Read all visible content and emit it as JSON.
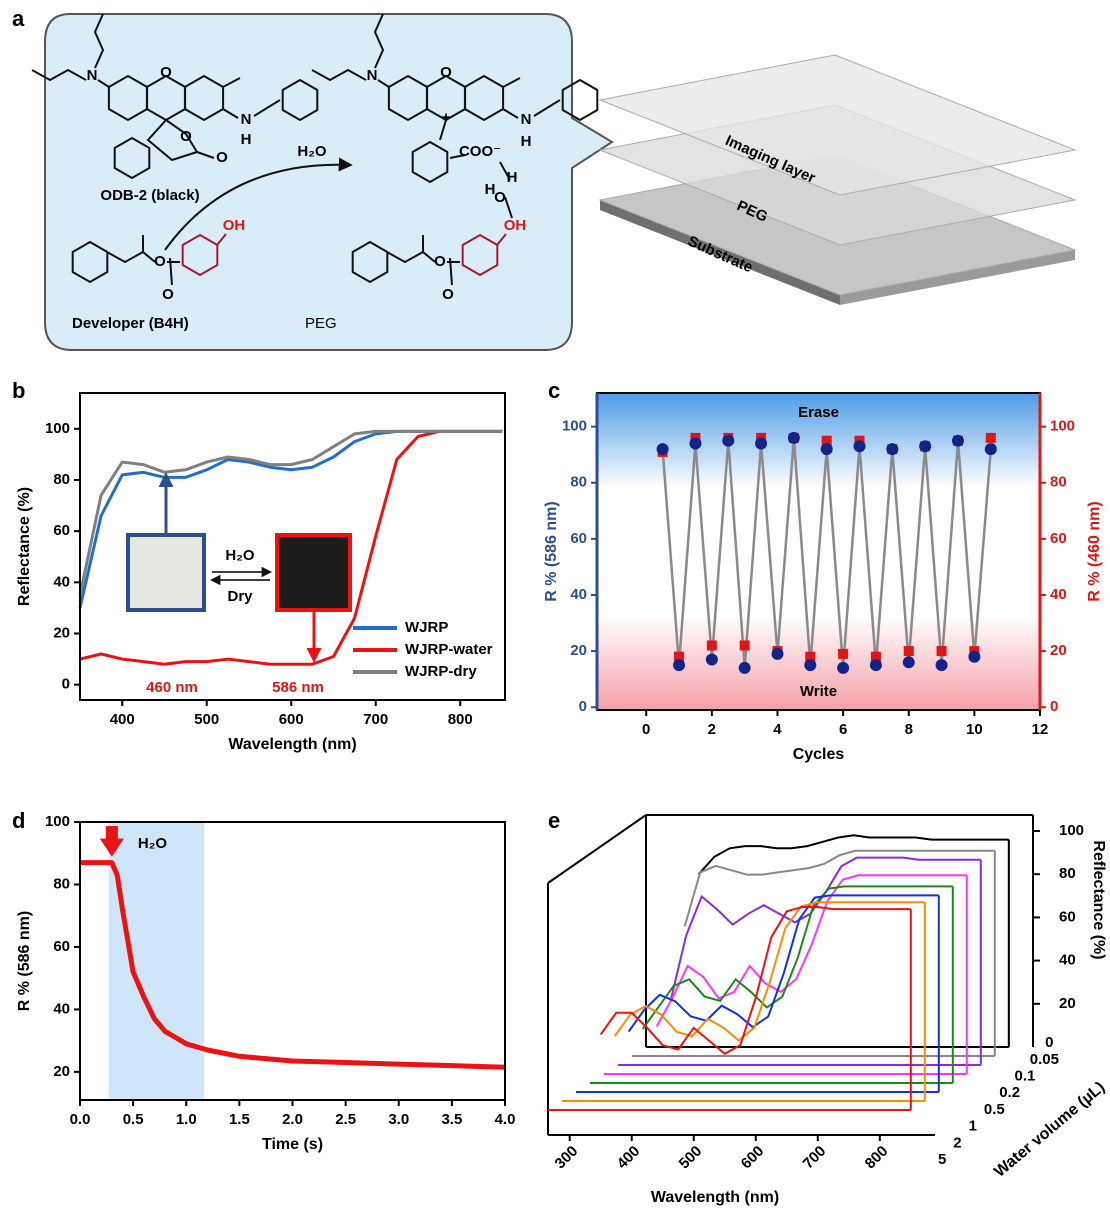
{
  "panel_labels": [
    "a",
    "b",
    "c",
    "d",
    "e"
  ],
  "scheme": {
    "dye": "ODB-2 (black)",
    "reagent": "H₂O",
    "developer": "Developer (B4H)",
    "matrix": "PEG",
    "dye_atoms": [
      "N",
      "O",
      "O",
      "O",
      "N",
      "H"
    ],
    "developer_atoms": [
      "OH",
      "O",
      "O"
    ],
    "complex_atoms": [
      "N",
      "O",
      "+",
      "COO⁻",
      "N",
      "H",
      "H",
      "O",
      "H",
      "OH",
      "O",
      "O"
    ],
    "layers": [
      "Imaging layer",
      "PEG",
      "Substrate"
    ]
  },
  "chart_data": [
    {
      "type": "line",
      "xlabel": "Wavelength (nm)",
      "ylabel": "Reflectance (%)",
      "x": [
        350,
        375,
        400,
        425,
        450,
        475,
        500,
        525,
        550,
        575,
        600,
        625,
        650,
        675,
        700,
        725,
        750,
        775,
        800,
        825,
        850
      ],
      "series": [
        {
          "name": "WJRP",
          "color": "#1f6fd1",
          "values": [
            30,
            66,
            82,
            83,
            81,
            81,
            84,
            88,
            87,
            85,
            84,
            85,
            89,
            95,
            98,
            99,
            99,
            99,
            99,
            99,
            99
          ]
        },
        {
          "name": "WJRP-water",
          "color": "#ee1111",
          "values": [
            10,
            12,
            10,
            9,
            8,
            9,
            9,
            10,
            9,
            8,
            8,
            8,
            11,
            26,
            58,
            88,
            97,
            99,
            99,
            99,
            99
          ]
        },
        {
          "name": "WJRP-dry",
          "color": "#808080",
          "values": [
            35,
            74,
            87,
            86,
            83,
            84,
            87,
            89,
            88,
            86,
            86,
            88,
            93,
            98,
            99,
            99,
            99,
            99,
            99,
            99,
            99
          ]
        }
      ],
      "xlim": [
        350,
        853
      ],
      "ylim": [
        -6,
        114
      ],
      "xticks": [
        400,
        500,
        600,
        700,
        800
      ],
      "yticks": [
        0,
        20,
        40,
        60,
        80,
        100
      ],
      "legend": "lower right",
      "annotations": [
        "460 nm",
        "586 nm",
        "H₂O",
        "Dry"
      ]
    },
    {
      "type": "scatter",
      "xlabel": "Cycles",
      "ylabel": "R % (586 nm)",
      "y2label": "R % (460 nm)",
      "x": [
        0.5,
        1,
        1.5,
        2,
        2.5,
        3,
        3.5,
        4,
        4.5,
        5,
        5.5,
        6,
        6.5,
        7,
        7.5,
        8,
        8.5,
        9,
        9.5,
        10,
        10.5
      ],
      "series": [
        {
          "color": "#13238a",
          "values": [
            92,
            15,
            94,
            17,
            95,
            14,
            94,
            19,
            96,
            15,
            92,
            14,
            93,
            15,
            92,
            16,
            93,
            15,
            95,
            18,
            92
          ]
        },
        {
          "color": "#e01515",
          "axis": "y2",
          "values": [
            91,
            18,
            96,
            22,
            96,
            22,
            96,
            20,
            96,
            18,
            95,
            19,
            95,
            18,
            92,
            20,
            93,
            20,
            95,
            20,
            96
          ]
        }
      ],
      "xlim": [
        -1.5,
        12
      ],
      "ylim": [
        -1,
        112
      ],
      "y2lim": [
        -1,
        112
      ],
      "xticks": [
        0,
        2,
        4,
        6,
        8,
        10,
        12
      ],
      "yticks": [
        0,
        20,
        40,
        60,
        80,
        100
      ],
      "y2ticks": [
        0,
        20,
        40,
        60,
        80,
        100
      ],
      "annotations": [
        "Erase",
        "Write"
      ]
    },
    {
      "type": "line",
      "xlabel": "Time (s)",
      "ylabel": "R % (586 nm)",
      "x": [
        0,
        0.3,
        0.35,
        0.4,
        0.5,
        0.6,
        0.7,
        0.8,
        0.9,
        1,
        1.2,
        1.5,
        2,
        2.5,
        3,
        3.5,
        4
      ],
      "series": [
        {
          "color": "#ee1111",
          "values": [
            87,
            87,
            83,
            72,
            52,
            44,
            37,
            33,
            31,
            29,
            27,
            25,
            23.5,
            23,
            22.5,
            22,
            21.5
          ]
        }
      ],
      "xlim": [
        0,
        4
      ],
      "ylim": [
        11,
        100
      ],
      "xticks": [
        {
          "value": 0,
          "label": "0.0"
        },
        0.5,
        {
          "value": 1,
          "label": "1.0"
        },
        1.5,
        {
          "value": 2,
          "label": "2.0"
        },
        2.5,
        {
          "value": 3,
          "label": "3.0"
        },
        3.5,
        {
          "value": 4,
          "label": "4.0"
        }
      ],
      "yticks": [
        20,
        40,
        60,
        80,
        100
      ],
      "highlight": [
        0.27,
        1.17
      ],
      "annotations": [
        "H₂O"
      ]
    },
    {
      "type": "waterfall",
      "xlabel": "Wavelength (nm)",
      "ylabel": "Reflectance (%)",
      "zlabel": "Water volume (µL)",
      "x": [
        350,
        375,
        400,
        425,
        450,
        475,
        500,
        525,
        550,
        575,
        600,
        625,
        650,
        675,
        700,
        725,
        750,
        775,
        800,
        825,
        850
      ],
      "series": [
        {
          "name": "0",
          "color": "#000000",
          "values": [
            80,
            88,
            92,
            93,
            93,
            92,
            92,
            93,
            95,
            97,
            98,
            97,
            97,
            97,
            97,
            96,
            96,
            96,
            96,
            96,
            96
          ]
        },
        {
          "name": "0.05",
          "color": "#888888",
          "values": [
            60,
            85,
            88,
            86,
            84,
            84,
            85,
            86,
            87,
            89,
            93,
            95,
            95,
            95,
            95,
            95,
            95,
            95,
            95,
            95,
            95
          ]
        },
        {
          "name": "0.1",
          "color": "#8a2be2",
          "values": [
            30,
            60,
            78,
            72,
            65,
            70,
            74,
            70,
            66,
            70,
            80,
            92,
            96,
            96,
            96,
            96,
            95,
            95,
            95,
            95,
            95
          ]
        },
        {
          "name": "0.2",
          "color": "#ff33ff",
          "values": [
            22,
            35,
            50,
            45,
            35,
            38,
            50,
            42,
            38,
            44,
            60,
            80,
            90,
            92,
            92,
            92,
            92,
            92,
            92,
            92,
            92
          ]
        },
        {
          "name": "0.5",
          "color": "#1a8a1a",
          "values": [
            25,
            35,
            45,
            48,
            40,
            38,
            48,
            42,
            35,
            40,
            58,
            82,
            90,
            91,
            91,
            91,
            91,
            91,
            91,
            91,
            91
          ]
        },
        {
          "name": "1",
          "color": "#1030ee",
          "values": [
            28,
            38,
            45,
            42,
            35,
            33,
            40,
            36,
            30,
            35,
            55,
            80,
            90,
            91,
            91,
            91,
            91,
            91,
            91,
            91,
            91
          ]
        },
        {
          "name": "2",
          "color": "#ff8c00",
          "values": [
            30,
            40,
            44,
            40,
            32,
            30,
            38,
            34,
            28,
            34,
            55,
            80,
            90,
            92,
            92,
            92,
            92,
            92,
            92,
            92,
            92
          ]
        },
        {
          "name": "5",
          "color": "#ee1111",
          "values": [
            35,
            45,
            45,
            38,
            30,
            28,
            38,
            32,
            26,
            30,
            52,
            80,
            92,
            94,
            94,
            93,
            93,
            93,
            93,
            93,
            93
          ]
        }
      ],
      "xlim": [
        265,
        889
      ],
      "ylim": [
        0,
        100
      ],
      "xticks": [
        300,
        400,
        500,
        600,
        700,
        800
      ],
      "yticks": [
        20,
        40,
        60,
        80,
        100
      ]
    }
  ]
}
